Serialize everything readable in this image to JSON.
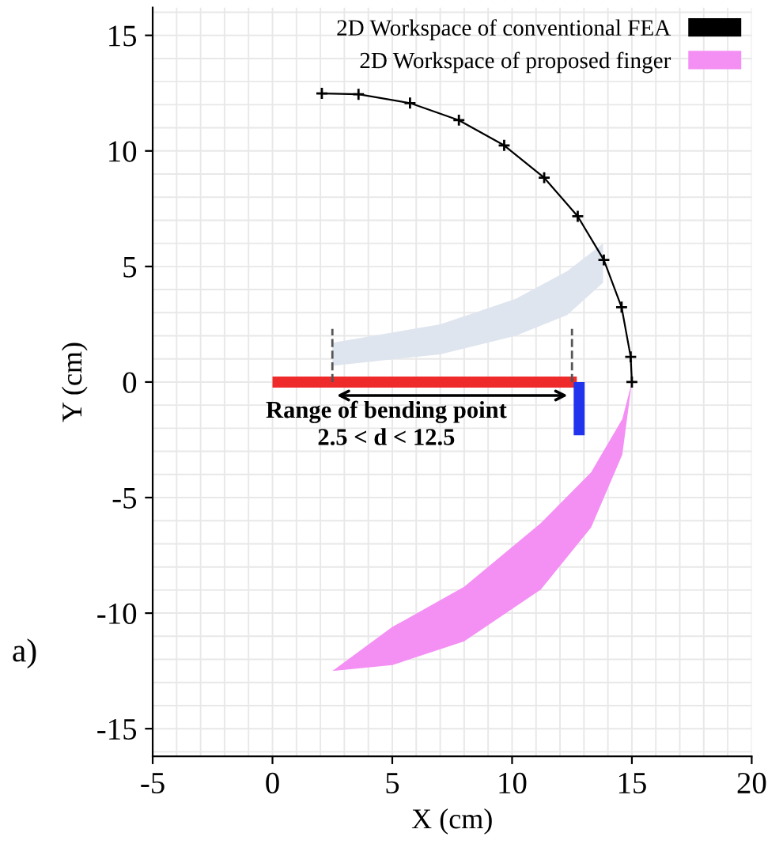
{
  "chart_data": {
    "type": "line",
    "xlabel": "X (cm)",
    "ylabel": "Y (cm)",
    "xlim": [
      -5,
      20
    ],
    "ylim": [
      -16.2,
      16.2
    ],
    "xticks": [
      -5,
      0,
      5,
      10,
      15,
      20
    ],
    "yticks": [
      -15,
      -10,
      -5,
      0,
      5,
      10,
      15
    ],
    "grid": true,
    "legend": "top right",
    "annotations": [
      "Range of bending point\n2.5 < d < 12.5",
      "a)"
    ],
    "series": [
      {
        "type": "area",
        "color": "#dfe5ef",
        "x": [
          2.5,
          7,
          10.15,
          12.3,
          13.8,
          13.8,
          12.3,
          10.15,
          7,
          2.5
        ],
        "values": [
          0.7,
          1.2,
          2.0,
          2.9,
          4.3,
          6.0,
          4.8,
          3.6,
          2.5,
          1.7
        ]
      },
      {
        "name": "2D Workspace of conventional FEA",
        "color": "#000000",
        "marker": "cross",
        "x": [
          2.06,
          3.59,
          5.74,
          7.78,
          9.67,
          11.34,
          12.74,
          13.83,
          14.57,
          14.95,
          15.0
        ],
        "values": [
          12.49,
          12.45,
          12.07,
          11.33,
          10.24,
          8.84,
          7.17,
          5.28,
          3.24,
          1.09,
          0
        ]
      },
      {
        "name": "2D Workspace of proposed finger",
        "type": "area",
        "color": "#f490f4",
        "x": [
          15,
          14.6,
          13.3,
          11.2,
          8,
          5,
          2.5,
          5,
          8,
          11.2,
          13.3,
          14.6
        ],
        "values": [
          0,
          -3.14,
          -6.29,
          -8.98,
          -11.22,
          -12.25,
          -12.5,
          -10.6,
          -8.86,
          -6.1,
          -3.9,
          -1.6
        ]
      },
      {
        "color": "#ee2a2a",
        "x": [
          0,
          12.7
        ],
        "values": [
          0,
          0
        ]
      },
      {
        "color": "#2233ee",
        "x": [
          12.8,
          12.8
        ],
        "values": [
          0,
          -2.3
        ]
      },
      {
        "color": "#555555",
        "line_style": "dashed",
        "x": [
          2.5,
          2.5
        ],
        "values": [
          0,
          2.3
        ]
      },
      {
        "color": "#555555",
        "line_style": "dashed",
        "x": [
          12.5,
          12.5
        ],
        "values": [
          0,
          2.3
        ]
      }
    ]
  }
}
